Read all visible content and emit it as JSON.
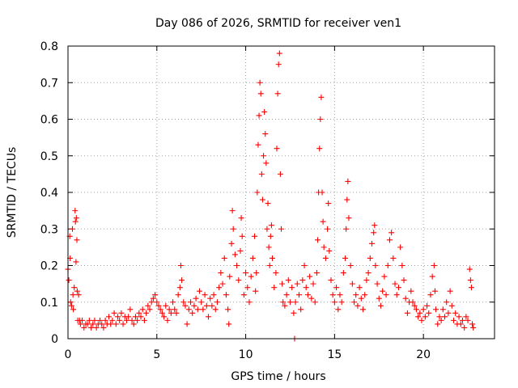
{
  "chart_data": {
    "type": "scatter",
    "title": "Day 086 of 2026, SRMTID for receiver ven1",
    "xlabel": "GPS time / hours",
    "ylabel": "SRMTID / TECUs",
    "xlim": [
      0,
      24
    ],
    "ylim": [
      0,
      0.8
    ],
    "xticks": [
      0,
      5,
      10,
      15,
      20
    ],
    "xtick_labels": [
      "0",
      "5",
      "10",
      "15",
      "20"
    ],
    "yticks": [
      0,
      0.1,
      0.2,
      0.3,
      0.4,
      0.5,
      0.6,
      0.7,
      0.8
    ],
    "ytick_labels": [
      "0",
      "0.1",
      "0.2",
      "0.3",
      "0.4",
      "0.5",
      "0.6",
      "0.7",
      "0.8"
    ],
    "grid": true,
    "marker": "+",
    "series": [
      {
        "name": "SRMTID",
        "color": "#ff0000",
        "points": [
          [
            0.0,
            0.19
          ],
          [
            0.05,
            0.16
          ],
          [
            0.1,
            0.28
          ],
          [
            0.12,
            0.22
          ],
          [
            0.15,
            0.1
          ],
          [
            0.2,
            0.09
          ],
          [
            0.25,
            0.3
          ],
          [
            0.28,
            0.12
          ],
          [
            0.3,
            0.08
          ],
          [
            0.35,
            0.14
          ],
          [
            0.4,
            0.35
          ],
          [
            0.42,
            0.32
          ],
          [
            0.45,
            0.21
          ],
          [
            0.47,
            0.33
          ],
          [
            0.5,
            0.27
          ],
          [
            0.52,
            0.13
          ],
          [
            0.55,
            0.05
          ],
          [
            0.6,
            0.12
          ],
          [
            0.65,
            0.05
          ],
          [
            0.7,
            0.04
          ],
          [
            0.8,
            0.05
          ],
          [
            0.9,
            0.03
          ],
          [
            1.0,
            0.04
          ],
          [
            1.1,
            0.04
          ],
          [
            1.2,
            0.05
          ],
          [
            1.3,
            0.03
          ],
          [
            1.4,
            0.04
          ],
          [
            1.5,
            0.05
          ],
          [
            1.6,
            0.03
          ],
          [
            1.7,
            0.04
          ],
          [
            1.8,
            0.05
          ],
          [
            1.9,
            0.04
          ],
          [
            2.0,
            0.03
          ],
          [
            2.1,
            0.05
          ],
          [
            2.2,
            0.04
          ],
          [
            2.3,
            0.06
          ],
          [
            2.4,
            0.04
          ],
          [
            2.5,
            0.05
          ],
          [
            2.6,
            0.07
          ],
          [
            2.7,
            0.04
          ],
          [
            2.8,
            0.06
          ],
          [
            2.9,
            0.05
          ],
          [
            3.0,
            0.07
          ],
          [
            3.1,
            0.04
          ],
          [
            3.2,
            0.06
          ],
          [
            3.3,
            0.05
          ],
          [
            3.4,
            0.06
          ],
          [
            3.5,
            0.08
          ],
          [
            3.6,
            0.05
          ],
          [
            3.7,
            0.04
          ],
          [
            3.8,
            0.06
          ],
          [
            3.9,
            0.05
          ],
          [
            4.0,
            0.07
          ],
          [
            4.1,
            0.06
          ],
          [
            4.2,
            0.08
          ],
          [
            4.3,
            0.05
          ],
          [
            4.4,
            0.07
          ],
          [
            4.5,
            0.09
          ],
          [
            4.6,
            0.08
          ],
          [
            4.7,
            0.1
          ],
          [
            4.8,
            0.11
          ],
          [
            4.9,
            0.12
          ],
          [
            5.0,
            0.1
          ],
          [
            5.1,
            0.09
          ],
          [
            5.2,
            0.08
          ],
          [
            5.3,
            0.07
          ],
          [
            5.4,
            0.06
          ],
          [
            5.5,
            0.09
          ],
          [
            5.6,
            0.05
          ],
          [
            5.7,
            0.08
          ],
          [
            5.8,
            0.07
          ],
          [
            5.9,
            0.1
          ],
          [
            6.0,
            0.08
          ],
          [
            6.1,
            0.07
          ],
          [
            6.2,
            0.12
          ],
          [
            6.3,
            0.14
          ],
          [
            6.35,
            0.2
          ],
          [
            6.4,
            0.16
          ],
          [
            6.5,
            0.1
          ],
          [
            6.6,
            0.09
          ],
          [
            6.7,
            0.04
          ],
          [
            6.8,
            0.08
          ],
          [
            6.9,
            0.1
          ],
          [
            7.0,
            0.07
          ],
          [
            7.1,
            0.09
          ],
          [
            7.2,
            0.11
          ],
          [
            7.3,
            0.08
          ],
          [
            7.4,
            0.13
          ],
          [
            7.5,
            0.1
          ],
          [
            7.6,
            0.08
          ],
          [
            7.7,
            0.12
          ],
          [
            7.8,
            0.09
          ],
          [
            7.9,
            0.06
          ],
          [
            8.0,
            0.11
          ],
          [
            8.1,
            0.09
          ],
          [
            8.2,
            0.12
          ],
          [
            8.3,
            0.08
          ],
          [
            8.4,
            0.1
          ],
          [
            8.5,
            0.14
          ],
          [
            8.6,
            0.18
          ],
          [
            8.7,
            0.15
          ],
          [
            8.8,
            0.22
          ],
          [
            8.9,
            0.12
          ],
          [
            9.0,
            0.08
          ],
          [
            9.05,
            0.04
          ],
          [
            9.1,
            0.17
          ],
          [
            9.2,
            0.26
          ],
          [
            9.25,
            0.35
          ],
          [
            9.3,
            0.3
          ],
          [
            9.4,
            0.23
          ],
          [
            9.5,
            0.2
          ],
          [
            9.6,
            0.16
          ],
          [
            9.7,
            0.24
          ],
          [
            9.75,
            0.33
          ],
          [
            9.8,
            0.28
          ],
          [
            9.9,
            0.12
          ],
          [
            10.0,
            0.18
          ],
          [
            10.1,
            0.14
          ],
          [
            10.2,
            0.1
          ],
          [
            10.3,
            0.17
          ],
          [
            10.4,
            0.22
          ],
          [
            10.5,
            0.28
          ],
          [
            10.55,
            0.13
          ],
          [
            10.6,
            0.18
          ],
          [
            10.65,
            0.4
          ],
          [
            10.7,
            0.53
          ],
          [
            10.75,
            0.61
          ],
          [
            10.8,
            0.7
          ],
          [
            10.85,
            0.67
          ],
          [
            10.9,
            0.45
          ],
          [
            10.95,
            0.38
          ],
          [
            11.0,
            0.5
          ],
          [
            11.05,
            0.62
          ],
          [
            11.1,
            0.56
          ],
          [
            11.15,
            0.48
          ],
          [
            11.2,
            0.3
          ],
          [
            11.25,
            0.37
          ],
          [
            11.3,
            0.25
          ],
          [
            11.35,
            0.2
          ],
          [
            11.4,
            0.28
          ],
          [
            11.45,
            0.31
          ],
          [
            11.5,
            0.22
          ],
          [
            11.6,
            0.14
          ],
          [
            11.7,
            0.18
          ],
          [
            11.75,
            0.52
          ],
          [
            11.8,
            0.67
          ],
          [
            11.85,
            0.75
          ],
          [
            11.9,
            0.78
          ],
          [
            11.95,
            0.45
          ],
          [
            12.0,
            0.3
          ],
          [
            12.05,
            0.15
          ],
          [
            12.1,
            0.1
          ],
          [
            12.2,
            0.09
          ],
          [
            12.3,
            0.12
          ],
          [
            12.4,
            0.16
          ],
          [
            12.5,
            0.1
          ],
          [
            12.6,
            0.14
          ],
          [
            12.7,
            0.07
          ],
          [
            12.8,
            0.1
          ],
          [
            12.9,
            0.15
          ],
          [
            13.0,
            0.12
          ],
          [
            13.1,
            0.08
          ],
          [
            13.2,
            0.16
          ],
          [
            13.3,
            0.2
          ],
          [
            13.4,
            0.14
          ],
          [
            13.5,
            0.12
          ],
          [
            13.6,
            0.17
          ],
          [
            13.7,
            0.11
          ],
          [
            13.8,
            0.15
          ],
          [
            13.9,
            0.1
          ],
          [
            14.0,
            0.18
          ],
          [
            14.05,
            0.27
          ],
          [
            14.1,
            0.4
          ],
          [
            14.15,
            0.52
          ],
          [
            14.2,
            0.6
          ],
          [
            14.25,
            0.66
          ],
          [
            14.3,
            0.4
          ],
          [
            14.35,
            0.32
          ],
          [
            14.4,
            0.25
          ],
          [
            14.5,
            0.22
          ],
          [
            14.6,
            0.3
          ],
          [
            14.65,
            0.37
          ],
          [
            14.7,
            0.24
          ],
          [
            14.8,
            0.16
          ],
          [
            14.9,
            0.12
          ],
          [
            15.0,
            0.1
          ],
          [
            15.1,
            0.14
          ],
          [
            15.2,
            0.08
          ],
          [
            15.3,
            0.12
          ],
          [
            15.4,
            0.1
          ],
          [
            15.5,
            0.18
          ],
          [
            15.6,
            0.22
          ],
          [
            15.65,
            0.3
          ],
          [
            15.7,
            0.38
          ],
          [
            15.75,
            0.43
          ],
          [
            15.8,
            0.33
          ],
          [
            15.9,
            0.2
          ],
          [
            16.0,
            0.15
          ],
          [
            16.1,
            0.1
          ],
          [
            16.2,
            0.12
          ],
          [
            16.3,
            0.09
          ],
          [
            16.4,
            0.14
          ],
          [
            16.5,
            0.11
          ],
          [
            16.6,
            0.08
          ],
          [
            16.7,
            0.12
          ],
          [
            16.8,
            0.16
          ],
          [
            16.9,
            0.18
          ],
          [
            17.0,
            0.22
          ],
          [
            17.1,
            0.26
          ],
          [
            17.2,
            0.29
          ],
          [
            17.25,
            0.31
          ],
          [
            17.3,
            0.2
          ],
          [
            17.4,
            0.15
          ],
          [
            17.5,
            0.11
          ],
          [
            17.6,
            0.09
          ],
          [
            17.7,
            0.13
          ],
          [
            17.8,
            0.17
          ],
          [
            17.9,
            0.12
          ],
          [
            18.0,
            0.2
          ],
          [
            18.1,
            0.27
          ],
          [
            18.2,
            0.29
          ],
          [
            18.3,
            0.22
          ],
          [
            18.4,
            0.15
          ],
          [
            18.5,
            0.12
          ],
          [
            18.6,
            0.14
          ],
          [
            18.7,
            0.25
          ],
          [
            18.8,
            0.2
          ],
          [
            18.9,
            0.16
          ],
          [
            19.0,
            0.11
          ],
          [
            19.1,
            0.07
          ],
          [
            19.2,
            0.1
          ],
          [
            19.3,
            0.13
          ],
          [
            19.4,
            0.1
          ],
          [
            19.5,
            0.09
          ],
          [
            19.6,
            0.08
          ],
          [
            19.7,
            0.06
          ],
          [
            19.8,
            0.07
          ],
          [
            19.9,
            0.05
          ],
          [
            20.0,
            0.08
          ],
          [
            20.1,
            0.06
          ],
          [
            20.2,
            0.09
          ],
          [
            20.3,
            0.07
          ],
          [
            20.4,
            0.12
          ],
          [
            20.5,
            0.17
          ],
          [
            20.6,
            0.2
          ],
          [
            20.65,
            0.13
          ],
          [
            20.7,
            0.08
          ],
          [
            20.8,
            0.04
          ],
          [
            20.9,
            0.06
          ],
          [
            21.0,
            0.05
          ],
          [
            21.1,
            0.08
          ],
          [
            21.2,
            0.06
          ],
          [
            21.3,
            0.1
          ],
          [
            21.4,
            0.07
          ],
          [
            21.5,
            0.13
          ],
          [
            21.6,
            0.09
          ],
          [
            21.7,
            0.05
          ],
          [
            21.8,
            0.07
          ],
          [
            21.9,
            0.04
          ],
          [
            22.0,
            0.06
          ],
          [
            22.1,
            0.04
          ],
          [
            22.2,
            0.05
          ],
          [
            22.3,
            0.03
          ],
          [
            22.4,
            0.06
          ],
          [
            22.5,
            0.05
          ],
          [
            22.6,
            0.19
          ],
          [
            22.65,
            0.16
          ],
          [
            22.7,
            0.14
          ],
          [
            22.75,
            0.04
          ],
          [
            22.8,
            0.03
          ],
          [
            12.75,
            0.0
          ]
        ]
      }
    ]
  }
}
